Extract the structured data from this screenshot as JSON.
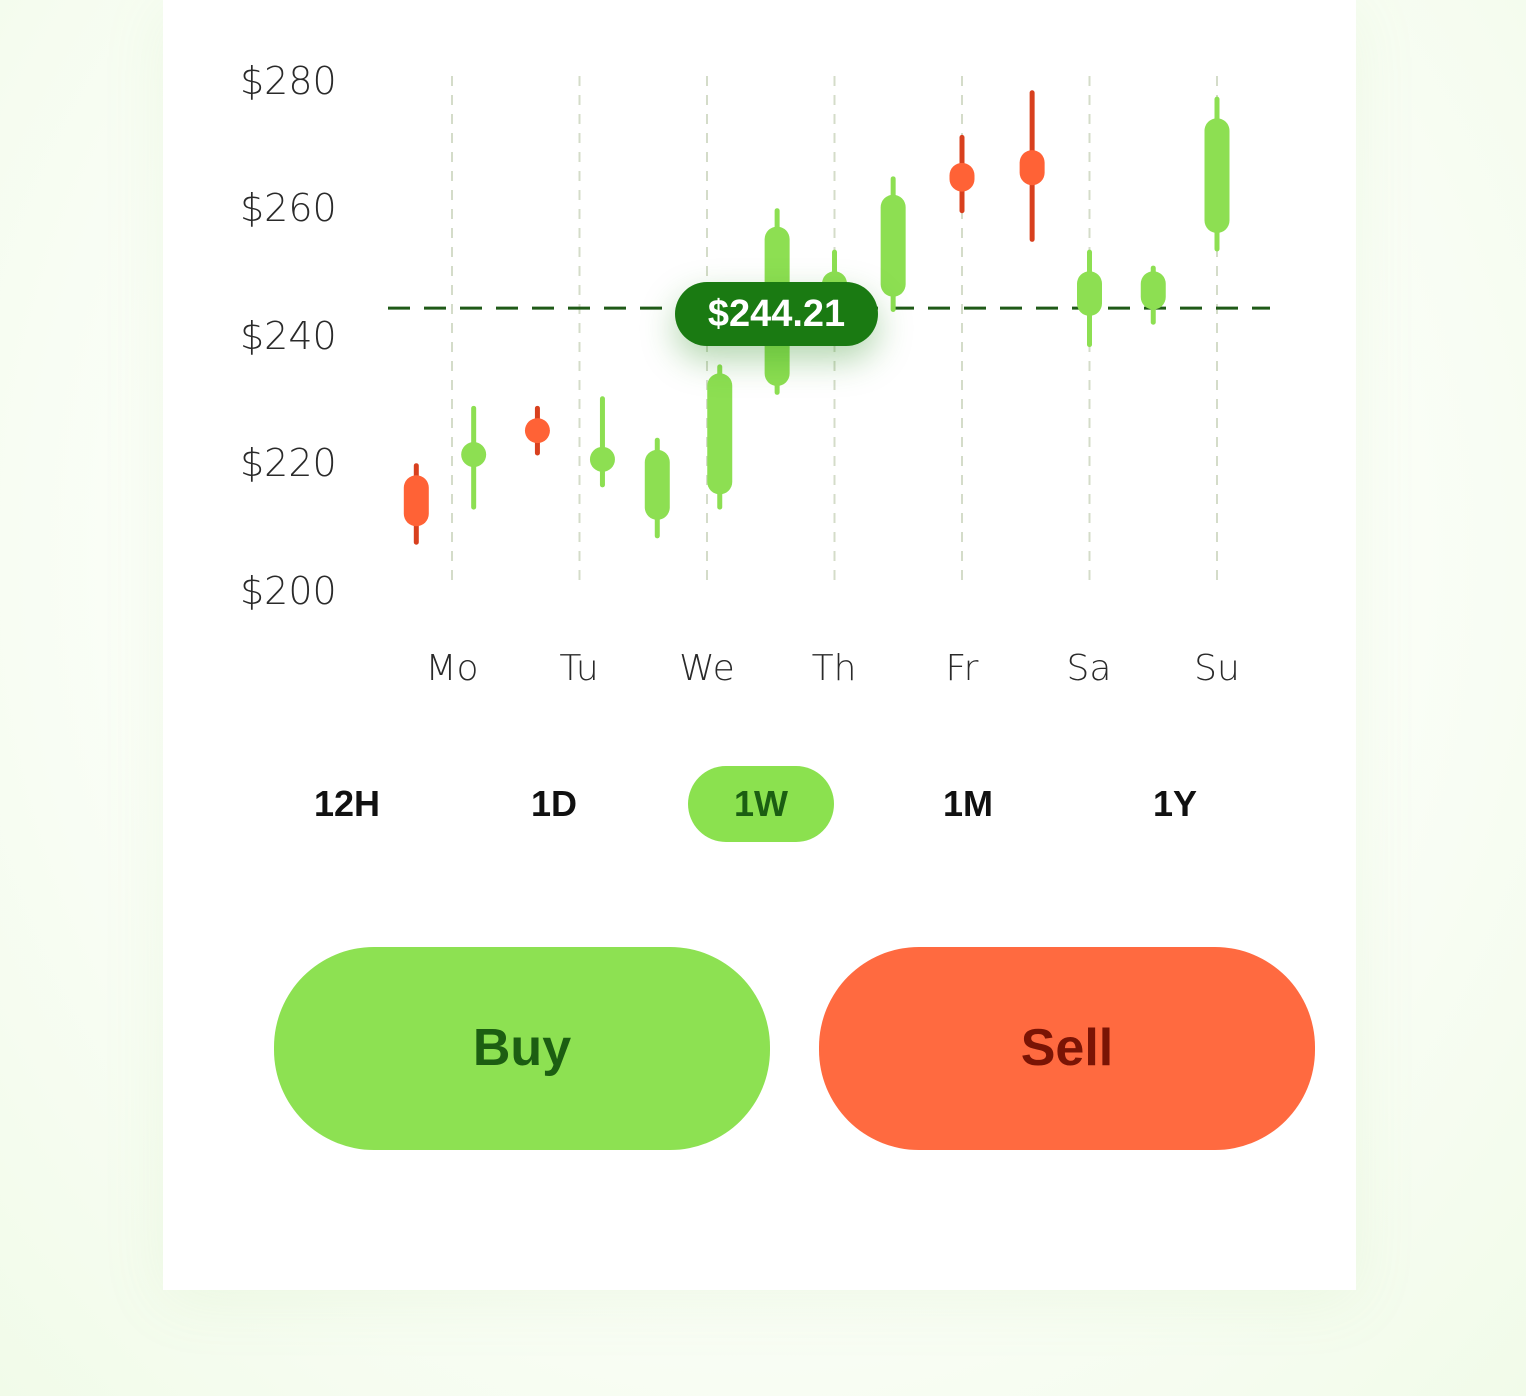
{
  "chart_data": {
    "type": "candlestick",
    "y_axis": {
      "ticks": [
        "$280",
        "$260",
        "$240",
        "$220",
        "$200"
      ],
      "tick_values": [
        280,
        260,
        240,
        220,
        200
      ],
      "range": [
        200,
        280
      ]
    },
    "x_axis": {
      "ticks": [
        "Mo",
        "Tu",
        "We",
        "Th",
        "Fr",
        "Sa",
        "Su"
      ],
      "tick_values": [
        1,
        2,
        3,
        4,
        5,
        6,
        7
      ],
      "range": [
        0.5,
        7.5
      ]
    },
    "current_price": 244.21,
    "current_price_label": "$244.21",
    "candles": [
      {
        "x": 0.72,
        "open": 218.0,
        "close": 210.0,
        "high": 219.5,
        "low": 207.5,
        "dir": "down"
      },
      {
        "x": 1.17,
        "open": 220.0,
        "close": 222.5,
        "high": 228.5,
        "low": 213.0,
        "dir": "up"
      },
      {
        "x": 1.67,
        "open": 226.0,
        "close": 224.0,
        "high": 228.5,
        "low": 221.5,
        "dir": "down"
      },
      {
        "x": 2.18,
        "open": 219.5,
        "close": 221.5,
        "high": 230.0,
        "low": 216.5,
        "dir": "up"
      },
      {
        "x": 2.61,
        "open": 211.0,
        "close": 222.0,
        "high": 223.5,
        "low": 208.5,
        "dir": "up"
      },
      {
        "x": 3.1,
        "open": 215.0,
        "close": 234.0,
        "high": 235.0,
        "low": 213.0,
        "dir": "up"
      },
      {
        "x": 3.55,
        "open": 232.0,
        "close": 257.0,
        "high": 259.5,
        "low": 231.0,
        "dir": "up"
      },
      {
        "x": 4.0,
        "open": 246.0,
        "close": 250.0,
        "high": 253.0,
        "low": 244.0,
        "dir": "up"
      },
      {
        "x": 4.46,
        "open": 246.0,
        "close": 262.0,
        "high": 264.5,
        "low": 244.0,
        "dir": "up"
      },
      {
        "x": 5.0,
        "open": 267.0,
        "close": 262.5,
        "high": 271.0,
        "low": 259.5,
        "dir": "down"
      },
      {
        "x": 5.55,
        "open": 269.0,
        "close": 263.5,
        "high": 278.0,
        "low": 255.0,
        "dir": "down"
      },
      {
        "x": 6.0,
        "open": 243.0,
        "close": 250.0,
        "high": 253.0,
        "low": 238.5,
        "dir": "up"
      },
      {
        "x": 6.5,
        "open": 244.0,
        "close": 250.0,
        "high": 250.5,
        "low": 242.0,
        "dir": "up"
      },
      {
        "x": 7.0,
        "open": 256.0,
        "close": 274.0,
        "high": 277.0,
        "low": 253.5,
        "dir": "up"
      }
    ],
    "colors": {
      "up": "#8ddf52",
      "down": "#ff6236",
      "down_wick": "#d8401e",
      "price_line": "#1f5a17",
      "grid": "#d4dcc9"
    }
  },
  "time_ranges": {
    "items": [
      "12H",
      "1D",
      "1W",
      "1M",
      "1Y"
    ],
    "selected": "1W"
  },
  "actions": {
    "buy_label": "Buy",
    "sell_label": "Sell"
  }
}
